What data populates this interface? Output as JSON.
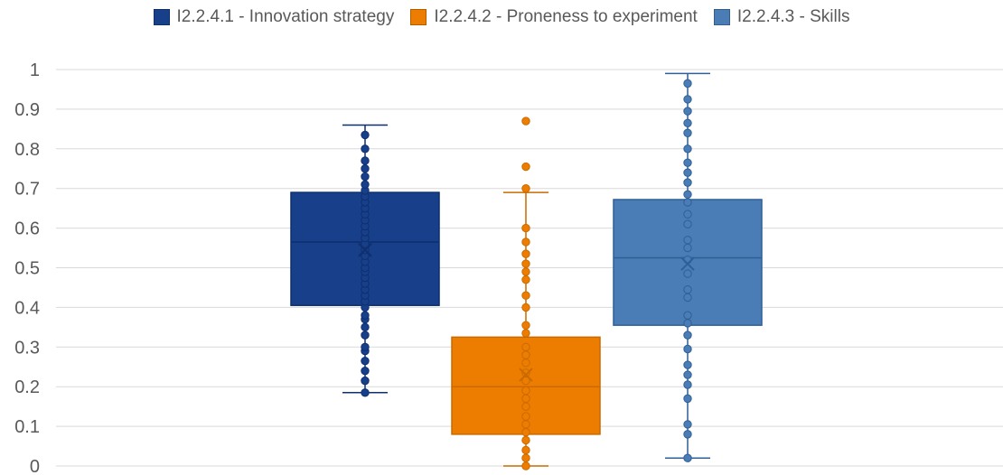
{
  "chart_data": {
    "type": "box",
    "ylim": [
      0,
      1
    ],
    "yticks": [
      "0",
      "0.1",
      "0.2",
      "0.3",
      "0.4",
      "0.5",
      "0.6",
      "0.7",
      "0.8",
      "0.9",
      "1"
    ],
    "grid": true,
    "legend_position": "top",
    "series": [
      {
        "name": "I2.2.4.1 - Innovation strategy",
        "color": "#173f8a",
        "min": 0.185,
        "q1": 0.405,
        "median": 0.565,
        "q3": 0.69,
        "max": 0.86,
        "mean": 0.545,
        "points": [
          0.185,
          0.215,
          0.24,
          0.265,
          0.29,
          0.3,
          0.33,
          0.35,
          0.37,
          0.38,
          0.4,
          0.415,
          0.43,
          0.445,
          0.46,
          0.475,
          0.49,
          0.5,
          0.515,
          0.53,
          0.545,
          0.56,
          0.575,
          0.59,
          0.605,
          0.62,
          0.635,
          0.65,
          0.665,
          0.68,
          0.695,
          0.71,
          0.73,
          0.75,
          0.77,
          0.8,
          0.835
        ]
      },
      {
        "name": "I2.2.4.2 - Proneness to experiment",
        "color": "#ed7d00",
        "min": 0.0,
        "q1": 0.08,
        "median": 0.2,
        "q3": 0.325,
        "max": 0.69,
        "mean": 0.23,
        "points": [
          0.0,
          0.02,
          0.04,
          0.065,
          0.085,
          0.105,
          0.125,
          0.15,
          0.17,
          0.19,
          0.215,
          0.235,
          0.26,
          0.28,
          0.3,
          0.335,
          0.355,
          0.4,
          0.43,
          0.47,
          0.49,
          0.51,
          0.535,
          0.565,
          0.6,
          0.7,
          0.755,
          0.87
        ]
      },
      {
        "name": "I2.2.4.3 - Skills",
        "color": "#4a7db5",
        "min": 0.02,
        "q1": 0.355,
        "median": 0.525,
        "q3": 0.672,
        "max": 0.99,
        "mean": 0.51,
        "points": [
          0.02,
          0.08,
          0.105,
          0.17,
          0.205,
          0.23,
          0.255,
          0.295,
          0.33,
          0.36,
          0.38,
          0.425,
          0.445,
          0.485,
          0.52,
          0.55,
          0.57,
          0.61,
          0.635,
          0.665,
          0.685,
          0.715,
          0.74,
          0.765,
          0.8,
          0.84,
          0.865,
          0.895,
          0.925,
          0.965
        ]
      }
    ]
  }
}
